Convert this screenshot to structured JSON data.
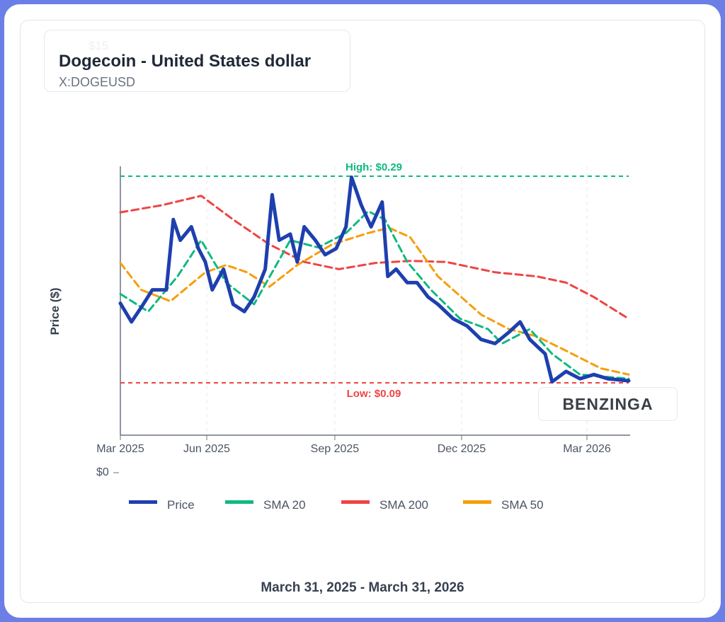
{
  "header": {
    "title": "Dogecoin - United States dollar",
    "symbol": "X:DOGEUSD",
    "ghost_tick": "$15"
  },
  "footer": {
    "date_range": "March 31, 2025 - March 31, 2026"
  },
  "logo": "BENZINGA",
  "colors": {
    "price": "#1e3fae",
    "sma20": "#10b981",
    "sma200": "#ef4444",
    "sma50": "#f59e0b",
    "frame": "#6b7fe6"
  },
  "chart_data": {
    "type": "line",
    "ylabel": "Price ($)",
    "y_tick_labels": [
      "$0"
    ],
    "x_tick_labels": [
      {
        "date": "2025-03-31",
        "label": "Mar 2025"
      },
      {
        "date": "2025-06-01",
        "label": "Jun 2025"
      },
      {
        "date": "2025-09-01",
        "label": "Sep 2025"
      },
      {
        "date": "2025-12-01",
        "label": "Dec 2025"
      },
      {
        "date": "2026-03-01",
        "label": "Mar 2026"
      }
    ],
    "xlim": [
      "2025-03-31",
      "2026-03-31"
    ],
    "grid": "vertical dashed",
    "legend_placement": "bottom",
    "annotations": {
      "high": {
        "label": "High: $0.29",
        "value": 0.29
      },
      "low": {
        "label": "Low: $0.09",
        "value": 0.09
      }
    },
    "series": [
      {
        "name": "Price",
        "x": [
          "2025-03-31",
          "2025-04-08",
          "2025-04-15",
          "2025-04-23",
          "2025-05-03",
          "2025-05-08",
          "2025-05-13",
          "2025-05-21",
          "2025-05-26",
          "2025-05-31",
          "2025-06-05",
          "2025-06-13",
          "2025-06-20",
          "2025-06-28",
          "2025-07-05",
          "2025-07-13",
          "2025-07-18",
          "2025-07-23",
          "2025-07-31",
          "2025-08-05",
          "2025-08-10",
          "2025-08-18",
          "2025-08-25",
          "2025-09-02",
          "2025-09-09",
          "2025-09-13",
          "2025-09-20",
          "2025-09-27",
          "2025-10-05",
          "2025-10-09",
          "2025-10-15",
          "2025-10-23",
          "2025-10-30",
          "2025-11-07",
          "2025-11-14",
          "2025-11-25",
          "2025-12-05",
          "2025-12-15",
          "2025-12-25",
          "2026-01-04",
          "2026-01-12",
          "2026-01-19",
          "2026-01-30",
          "2026-02-04",
          "2026-02-14",
          "2026-02-24",
          "2026-03-06",
          "2026-03-16",
          "2026-03-31"
        ],
        "y": [
          0.167,
          0.149,
          0.163,
          0.18,
          0.18,
          0.248,
          0.228,
          0.241,
          0.22,
          0.207,
          0.18,
          0.2,
          0.166,
          0.159,
          0.173,
          0.2,
          0.272,
          0.228,
          0.234,
          0.207,
          0.241,
          0.228,
          0.214,
          0.22,
          0.241,
          0.289,
          0.262,
          0.241,
          0.265,
          0.193,
          0.2,
          0.187,
          0.187,
          0.173,
          0.166,
          0.152,
          0.145,
          0.132,
          0.128,
          0.139,
          0.149,
          0.132,
          0.118,
          0.091,
          0.101,
          0.094,
          0.098,
          0.094,
          0.092
        ]
      },
      {
        "name": "SMA 20",
        "x": [
          "2025-03-31",
          "2025-04-20",
          "2025-05-11",
          "2025-05-28",
          "2025-06-15",
          "2025-07-05",
          "2025-07-31",
          "2025-08-20",
          "2025-09-09",
          "2025-09-25",
          "2025-10-07",
          "2025-10-23",
          "2025-11-09",
          "2025-11-30",
          "2025-12-20",
          "2025-12-30",
          "2026-01-19",
          "2026-02-04",
          "2026-02-24",
          "2026-03-31"
        ],
        "y": [
          0.176,
          0.159,
          0.193,
          0.228,
          0.187,
          0.166,
          0.228,
          0.221,
          0.235,
          0.256,
          0.248,
          0.207,
          0.18,
          0.152,
          0.142,
          0.128,
          0.142,
          0.118,
          0.098,
          0.094
        ]
      },
      {
        "name": "SMA 200",
        "x": [
          "2025-03-31",
          "2025-04-30",
          "2025-05-28",
          "2025-06-20",
          "2025-07-16",
          "2025-08-10",
          "2025-09-04",
          "2025-09-30",
          "2025-10-25",
          "2025-11-20",
          "2025-12-25",
          "2026-01-24",
          "2026-02-14",
          "2026-03-06",
          "2026-03-31"
        ],
        "y": [
          0.255,
          0.262,
          0.271,
          0.248,
          0.224,
          0.207,
          0.2,
          0.206,
          0.208,
          0.207,
          0.197,
          0.193,
          0.187,
          0.173,
          0.152
        ]
      },
      {
        "name": "SMA 50",
        "x": [
          "2025-03-31",
          "2025-04-15",
          "2025-05-06",
          "2025-05-31",
          "2025-06-15",
          "2025-06-30",
          "2025-07-16",
          "2025-08-05",
          "2025-08-30",
          "2025-09-25",
          "2025-10-10",
          "2025-10-25",
          "2025-11-14",
          "2025-12-15",
          "2026-01-04",
          "2026-01-24",
          "2026-02-14",
          "2026-03-11",
          "2026-03-31"
        ],
        "y": [
          0.206,
          0.18,
          0.169,
          0.197,
          0.204,
          0.197,
          0.183,
          0.204,
          0.224,
          0.235,
          0.24,
          0.231,
          0.193,
          0.156,
          0.142,
          0.135,
          0.121,
          0.104,
          0.098
        ]
      }
    ]
  }
}
